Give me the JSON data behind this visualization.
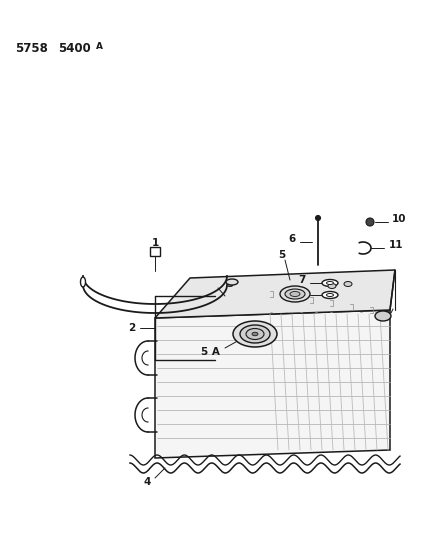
{
  "background_color": "#ffffff",
  "line_color": "#1a1a1a",
  "fig_width": 4.29,
  "fig_height": 5.33,
  "dpi": 100
}
